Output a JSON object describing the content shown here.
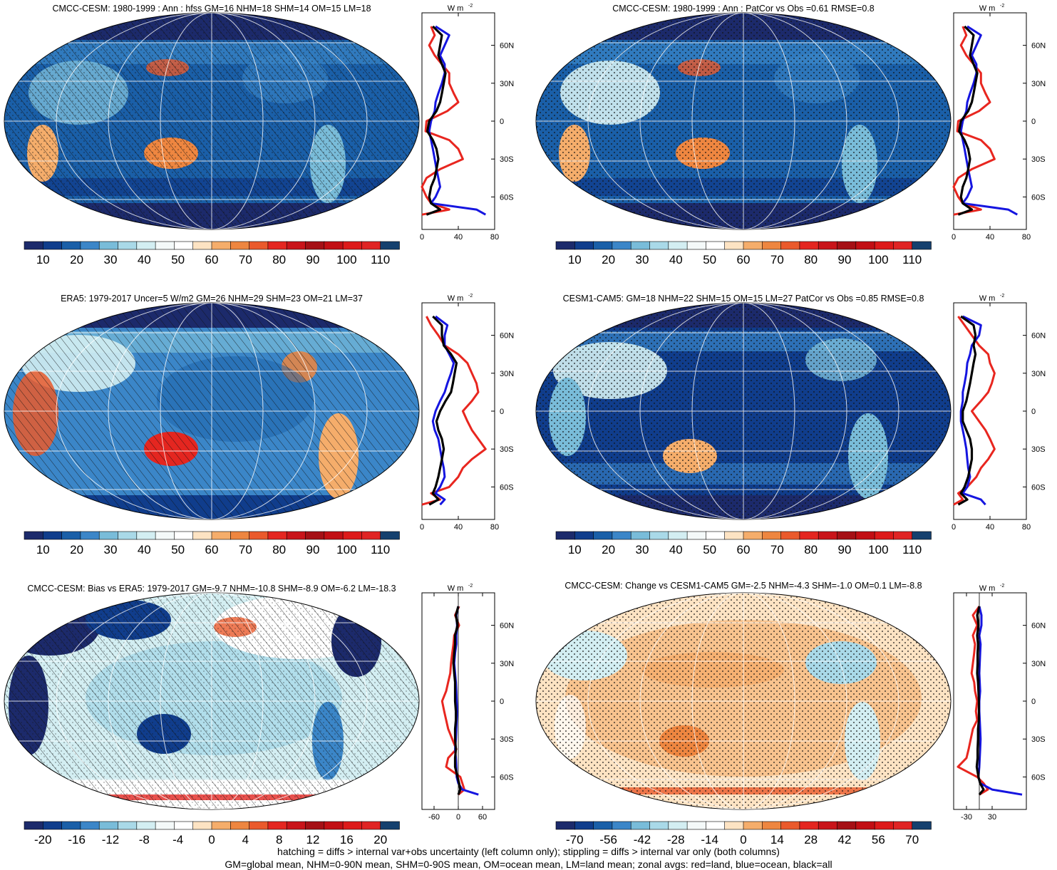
{
  "colors": {
    "land_line": "#e8261f",
    "ocean_line": "#1515e0",
    "all_line": "#000000",
    "ramp_full": [
      "#1c2a6b",
      "#103d8c",
      "#1a5fa8",
      "#3b86c8",
      "#79bcd9",
      "#a9d9e8",
      "#d3eef2",
      "#f4f9f9",
      "#ffffff",
      "#fde3c3",
      "#f5ad6b",
      "#ee8640",
      "#ea5a2c",
      "#e42620",
      "#c9141a",
      "#a51015",
      "#c20f14",
      "#dd1a1a",
      "#e02424",
      "#15406e"
    ],
    "ramp_bias": [
      "#1c2a6b",
      "#103d8c",
      "#1a5fa8",
      "#3b86c8",
      "#79bcd9",
      "#a9d9e8",
      "#d3eef2",
      "#f4f9f9",
      "#ffffff",
      "#fde3c3",
      "#f5ad6b",
      "#ee8640",
      "#ea5a2c",
      "#e42620",
      "#c9141a",
      "#a51015",
      "#c20f14",
      "#dd1a1a",
      "#e02424",
      "#15406e"
    ]
  },
  "panels": [
    {
      "title": "CMCC-CESM: 1980-1999 : Ann : hfss GM=16 NHM=18 SHM=14 OM=15 LM=18",
      "colorbar_labels": [
        "10",
        "20",
        "30",
        "40",
        "50",
        "60",
        "70",
        "80",
        "90",
        "100",
        "110"
      ],
      "zonal_units": "W m",
      "zonal_units_exp": "-2",
      "zonal_xticks": [
        "0",
        "40",
        "80"
      ],
      "zonal_xlim": [
        0,
        80
      ],
      "zonal_yticks": [
        "60N",
        "30N",
        "0",
        "30S",
        "60S"
      ]
    },
    {
      "title": "CMCC-CESM: 1980-1999 : Ann : PatCor vs Obs =0.61 RMSE=0.8",
      "colorbar_labels": [
        "10",
        "20",
        "30",
        "40",
        "50",
        "60",
        "70",
        "80",
        "90",
        "100",
        "110"
      ],
      "zonal_units": "W m",
      "zonal_units_exp": "-2",
      "zonal_xticks": [
        "0",
        "40",
        "80"
      ],
      "zonal_xlim": [
        0,
        80
      ],
      "zonal_yticks": [
        "60N",
        "30N",
        "0",
        "30S",
        "60S"
      ]
    },
    {
      "title": "ERA5: 1979-2017 Uncer=5 W/m2 GM=26 NHM=29 SHM=23 OM=21 LM=37",
      "colorbar_labels": [
        "10",
        "20",
        "30",
        "40",
        "50",
        "60",
        "70",
        "80",
        "90",
        "100",
        "110"
      ],
      "zonal_units": "W m",
      "zonal_units_exp": "-2",
      "zonal_xticks": [
        "0",
        "40",
        "80"
      ],
      "zonal_xlim": [
        0,
        80
      ],
      "zonal_yticks": [
        "60N",
        "30N",
        "0",
        "30S",
        "60S"
      ]
    },
    {
      "title": "CESM1-CAM5: GM=18 NHM=22 SHM=15 OM=15 LM=27 PatCor vs Obs =0.85 RMSE=0.8",
      "colorbar_labels": [
        "10",
        "20",
        "30",
        "40",
        "50",
        "60",
        "70",
        "80",
        "90",
        "100",
        "110"
      ],
      "zonal_units": "W m",
      "zonal_units_exp": "-2",
      "zonal_xticks": [
        "0",
        "40",
        "80"
      ],
      "zonal_xlim": [
        0,
        80
      ],
      "zonal_yticks": [
        "60N",
        "30N",
        "0",
        "30S",
        "60S"
      ]
    },
    {
      "title": "CMCC-CESM: Bias vs ERA5: 1979-2017 GM=-9.7 NHM=-10.8 SHM=-8.9 OM=-6.2 LM=-18.3",
      "colorbar_labels": [
        "-20",
        "-16",
        "-12",
        "-8",
        "-4",
        "0",
        "4",
        "8",
        "12",
        "16",
        "20"
      ],
      "zonal_units": "W m",
      "zonal_units_exp": "-2",
      "zonal_xticks": [
        "-60",
        "0",
        "60"
      ],
      "zonal_xlim": [
        -90,
        90
      ],
      "zonal_yticks": [
        "60N",
        "30N",
        "0",
        "30S",
        "60S"
      ]
    },
    {
      "title": "CMCC-CESM: Change vs CESM1-CAM5 GM=-2.5 NHM=-4.3 SHM=-1.0 OM=0.1 LM=-8.8",
      "colorbar_labels": [
        "-70",
        "-56",
        "-42",
        "-28",
        "-14",
        "0",
        "14",
        "28",
        "42",
        "56",
        "70"
      ],
      "zonal_units": "W m",
      "zonal_units_exp": "-2",
      "zonal_xticks": [
        "-30",
        "30"
      ],
      "zonal_xlim": [
        -60,
        110
      ],
      "zonal_yticks": [
        "60N",
        "30N",
        "0",
        "30S",
        "60S"
      ]
    }
  ],
  "footer": {
    "line1": "hatching = diffs > internal var+obs uncertainty (left column only); stippling = diffs > internal var only (both columns)",
    "line2": "GM=global mean, NHM=0-90N mean, SHM=0-90S mean, OM=ocean mean, LM=land mean; zonal avgs: red=land, blue=ocean, black=all"
  },
  "chart_data": [
    {
      "type": "line",
      "title": "CMCC-CESM: 1980-1999 : Ann : hfss GM=16 NHM=18 SHM=14 OM=15 LM=18",
      "y_lat": [
        75,
        68,
        60,
        52,
        45,
        38,
        30,
        22,
        15,
        8,
        0,
        -8,
        -15,
        -22,
        -30,
        -38,
        -45,
        -52,
        -60,
        -65,
        -70,
        -74
      ],
      "series": [
        {
          "name": "red=land",
          "values": [
            10,
            14,
            8,
            14,
            22,
            30,
            30,
            35,
            40,
            28,
            5,
            4,
            30,
            40,
            45,
            20,
            5,
            0,
            5,
            10,
            30,
            0
          ]
        },
        {
          "name": "blue=ocean",
          "values": [
            15,
            30,
            25,
            20,
            25,
            25,
            22,
            18,
            15,
            14,
            10,
            8,
            10,
            12,
            14,
            16,
            18,
            20,
            15,
            10,
            60,
            70
          ]
        },
        {
          "name": "black=all",
          "values": [
            12,
            22,
            20,
            18,
            22,
            26,
            24,
            22,
            20,
            16,
            8,
            6,
            12,
            16,
            18,
            16,
            14,
            10,
            8,
            10,
            20,
            5
          ]
        }
      ]
    },
    {
      "type": "line",
      "title": "CMCC-CESM: 1980-1999 : Ann : PatCor vs Obs =0.61 RMSE=0.8",
      "y_lat": [
        75,
        68,
        60,
        52,
        45,
        38,
        30,
        22,
        15,
        8,
        0,
        -8,
        -15,
        -22,
        -30,
        -38,
        -45,
        -52,
        -60,
        -65,
        -70,
        -74
      ],
      "series": [
        {
          "name": "red=land",
          "values": [
            10,
            14,
            8,
            14,
            22,
            30,
            30,
            35,
            40,
            28,
            5,
            4,
            30,
            40,
            45,
            20,
            5,
            0,
            5,
            10,
            30,
            0
          ]
        },
        {
          "name": "blue=ocean",
          "values": [
            15,
            30,
            25,
            20,
            25,
            25,
            22,
            18,
            15,
            14,
            10,
            8,
            10,
            12,
            14,
            16,
            18,
            20,
            15,
            10,
            60,
            70
          ]
        },
        {
          "name": "black=all",
          "values": [
            12,
            22,
            20,
            18,
            22,
            26,
            24,
            22,
            20,
            16,
            8,
            6,
            12,
            16,
            18,
            16,
            14,
            10,
            8,
            10,
            20,
            5
          ]
        }
      ]
    },
    {
      "type": "line",
      "title": "ERA5: 1979-2017 Uncer=5 W/m2 GM=26 NHM=29 SHM=23 OM=21 LM=37",
      "y_lat": [
        75,
        68,
        60,
        52,
        45,
        38,
        30,
        22,
        15,
        8,
        0,
        -8,
        -15,
        -22,
        -30,
        -38,
        -45,
        -52,
        -60,
        -65,
        -70,
        -74
      ],
      "series": [
        {
          "name": "red=land",
          "values": [
            5,
            10,
            18,
            25,
            40,
            50,
            55,
            60,
            62,
            55,
            45,
            50,
            55,
            62,
            70,
            55,
            45,
            40,
            30,
            10,
            20,
            0
          ]
        },
        {
          "name": "blue=ocean",
          "values": [
            15,
            28,
            25,
            25,
            30,
            35,
            32,
            28,
            25,
            20,
            15,
            12,
            14,
            18,
            20,
            22,
            24,
            25,
            20,
            15,
            25,
            20
          ]
        },
        {
          "name": "black=all",
          "values": [
            12,
            22,
            22,
            24,
            32,
            38,
            36,
            34,
            32,
            26,
            20,
            16,
            18,
            22,
            24,
            22,
            20,
            18,
            15,
            12,
            18,
            8
          ]
        }
      ]
    },
    {
      "type": "line",
      "title": "CESM1-CAM5: GM=18 NHM=22 SHM=15 OM=15 LM=27 PatCor vs Obs =0.85 RMSE=0.8",
      "y_lat": [
        75,
        68,
        60,
        52,
        45,
        38,
        30,
        22,
        15,
        8,
        0,
        -8,
        -15,
        -22,
        -30,
        -38,
        -45,
        -52,
        -60,
        -65,
        -70,
        -74
      ],
      "series": [
        {
          "name": "red=land",
          "values": [
            5,
            12,
            20,
            28,
            38,
            40,
            45,
            42,
            38,
            30,
            20,
            28,
            35,
            40,
            45,
            38,
            30,
            25,
            15,
            5,
            10,
            0
          ]
        },
        {
          "name": "blue=ocean",
          "values": [
            10,
            30,
            28,
            20,
            18,
            15,
            14,
            12,
            10,
            10,
            8,
            8,
            10,
            12,
            14,
            15,
            16,
            18,
            15,
            10,
            30,
            35
          ]
        },
        {
          "name": "black=all",
          "values": [
            8,
            22,
            24,
            22,
            24,
            22,
            20,
            18,
            16,
            14,
            10,
            10,
            14,
            18,
            20,
            20,
            18,
            16,
            12,
            8,
            15,
            5
          ]
        }
      ]
    },
    {
      "type": "line",
      "title": "CMCC-CESM: Bias vs ERA5: 1979-2017 GM=-9.7 NHM=-10.8 SHM=-8.9 OM=-6.2 LM=-18.3",
      "y_lat": [
        75,
        68,
        60,
        52,
        45,
        38,
        30,
        22,
        15,
        8,
        0,
        -8,
        -15,
        -22,
        -30,
        -38,
        -45,
        -52,
        -60,
        -65,
        -70,
        -74
      ],
      "series": [
        {
          "name": "red=land",
          "values": [
            2,
            -8,
            2,
            -10,
            -12,
            -15,
            -18,
            -20,
            -25,
            -30,
            -40,
            -35,
            -30,
            -25,
            -15,
            -5,
            -25,
            -30,
            5,
            10,
            15,
            0
          ]
        },
        {
          "name": "blue=ocean",
          "values": [
            0,
            -5,
            -3,
            -5,
            -5,
            -8,
            -10,
            -8,
            -6,
            -5,
            -4,
            -3,
            -4,
            -5,
            -6,
            -8,
            -6,
            -5,
            -4,
            0,
            10,
            50
          ]
        },
        {
          "name": "black=all",
          "values": [
            0,
            -6,
            -2,
            -8,
            -8,
            -10,
            -12,
            -10,
            -8,
            -8,
            -8,
            -6,
            -6,
            -8,
            -8,
            -6,
            -8,
            -8,
            -2,
            2,
            5,
            0
          ]
        }
      ]
    },
    {
      "type": "line",
      "title": "CMCC-CESM: Change vs CESM1-CAM5 GM=-2.5 NHM=-4.3 SHM=-1.0 OM=0.1 LM=-8.8",
      "y_lat": [
        75,
        68,
        60,
        52,
        45,
        38,
        30,
        22,
        15,
        8,
        0,
        -8,
        -15,
        -22,
        -30,
        -38,
        -45,
        -52,
        -60,
        -65,
        -70,
        -74
      ],
      "series": [
        {
          "name": "red=land",
          "values": [
            0,
            -15,
            -5,
            -15,
            -10,
            -12,
            -15,
            -18,
            -12,
            -10,
            -5,
            -8,
            -5,
            -15,
            -20,
            -25,
            -30,
            -50,
            -5,
            10,
            20,
            0
          ]
        },
        {
          "name": "blue=ocean",
          "values": [
            0,
            5,
            5,
            0,
            3,
            2,
            1,
            0,
            1,
            2,
            0,
            0,
            1,
            2,
            3,
            2,
            1,
            0,
            -2,
            2,
            30,
            100
          ]
        },
        {
          "name": "black=all",
          "values": [
            0,
            -5,
            -2,
            -5,
            -3,
            -4,
            -4,
            -5,
            -3,
            -2,
            -1,
            -1,
            -1,
            -3,
            -3,
            -4,
            -4,
            -6,
            -2,
            2,
            10,
            0
          ]
        }
      ]
    }
  ]
}
